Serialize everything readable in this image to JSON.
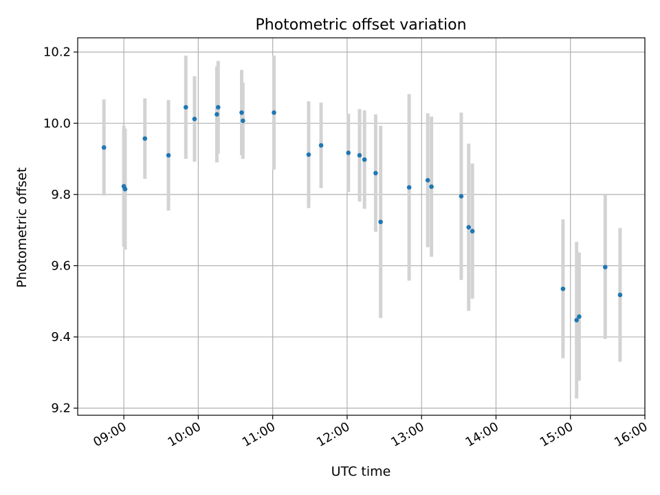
{
  "chart_data": {
    "type": "scatter",
    "title": "Photometric offset variation",
    "xlabel": "UTC time",
    "ylabel": "Photometric offset",
    "x_unit": "hours UTC",
    "xlim": [
      8.38,
      16.0
    ],
    "ylim": [
      9.18,
      10.24
    ],
    "x_ticks": [
      {
        "value": 9,
        "label": "09:00"
      },
      {
        "value": 10,
        "label": "10:00"
      },
      {
        "value": 11,
        "label": "11:00"
      },
      {
        "value": 12,
        "label": "12:00"
      },
      {
        "value": 13,
        "label": "13:00"
      },
      {
        "value": 14,
        "label": "14:00"
      },
      {
        "value": 15,
        "label": "15:00"
      },
      {
        "value": 16,
        "label": "16:00"
      }
    ],
    "y_ticks": [
      {
        "value": 9.2,
        "label": "9.2"
      },
      {
        "value": 9.4,
        "label": "9.4"
      },
      {
        "value": 9.6,
        "label": "9.6"
      },
      {
        "value": 9.8,
        "label": "9.8"
      },
      {
        "value": 10.0,
        "label": "10.0"
      },
      {
        "value": 10.2,
        "label": "10.2"
      }
    ],
    "grid": true,
    "point_color": "#1f77b4",
    "errorbar_color": "#d3d3d3",
    "points": [
      {
        "x": 8.733,
        "y": 9.932,
        "err": 0.135
      },
      {
        "x": 9.0,
        "y": 9.823,
        "err": 0.17
      },
      {
        "x": 9.017,
        "y": 9.815,
        "err": 0.17
      },
      {
        "x": 9.283,
        "y": 9.957,
        "err": 0.113
      },
      {
        "x": 9.6,
        "y": 9.91,
        "err": 0.155
      },
      {
        "x": 9.833,
        "y": 10.045,
        "err": 0.145
      },
      {
        "x": 9.95,
        "y": 10.012,
        "err": 0.12
      },
      {
        "x": 10.25,
        "y": 10.025,
        "err": 0.135
      },
      {
        "x": 10.267,
        "y": 10.045,
        "err": 0.13
      },
      {
        "x": 10.583,
        "y": 10.03,
        "err": 0.12
      },
      {
        "x": 10.6,
        "y": 10.007,
        "err": 0.107
      },
      {
        "x": 11.017,
        "y": 10.03,
        "err": 0.16
      },
      {
        "x": 11.483,
        "y": 9.912,
        "err": 0.15
      },
      {
        "x": 11.65,
        "y": 9.938,
        "err": 0.12
      },
      {
        "x": 12.017,
        "y": 9.917,
        "err": 0.11
      },
      {
        "x": 12.167,
        "y": 9.91,
        "err": 0.13
      },
      {
        "x": 12.233,
        "y": 9.898,
        "err": 0.138
      },
      {
        "x": 12.383,
        "y": 9.86,
        "err": 0.165
      },
      {
        "x": 12.45,
        "y": 9.723,
        "err": 0.27
      },
      {
        "x": 12.833,
        "y": 9.82,
        "err": 0.262
      },
      {
        "x": 13.083,
        "y": 9.84,
        "err": 0.188
      },
      {
        "x": 13.133,
        "y": 9.822,
        "err": 0.197
      },
      {
        "x": 13.533,
        "y": 9.795,
        "err": 0.235
      },
      {
        "x": 13.633,
        "y": 9.708,
        "err": 0.235
      },
      {
        "x": 13.683,
        "y": 9.697,
        "err": 0.19
      },
      {
        "x": 14.9,
        "y": 9.535,
        "err": 0.195
      },
      {
        "x": 15.083,
        "y": 9.447,
        "err": 0.22
      },
      {
        "x": 15.117,
        "y": 9.457,
        "err": 0.18
      },
      {
        "x": 15.467,
        "y": 9.596,
        "err": 0.202
      },
      {
        "x": 15.667,
        "y": 9.518,
        "err": 0.188
      }
    ]
  }
}
